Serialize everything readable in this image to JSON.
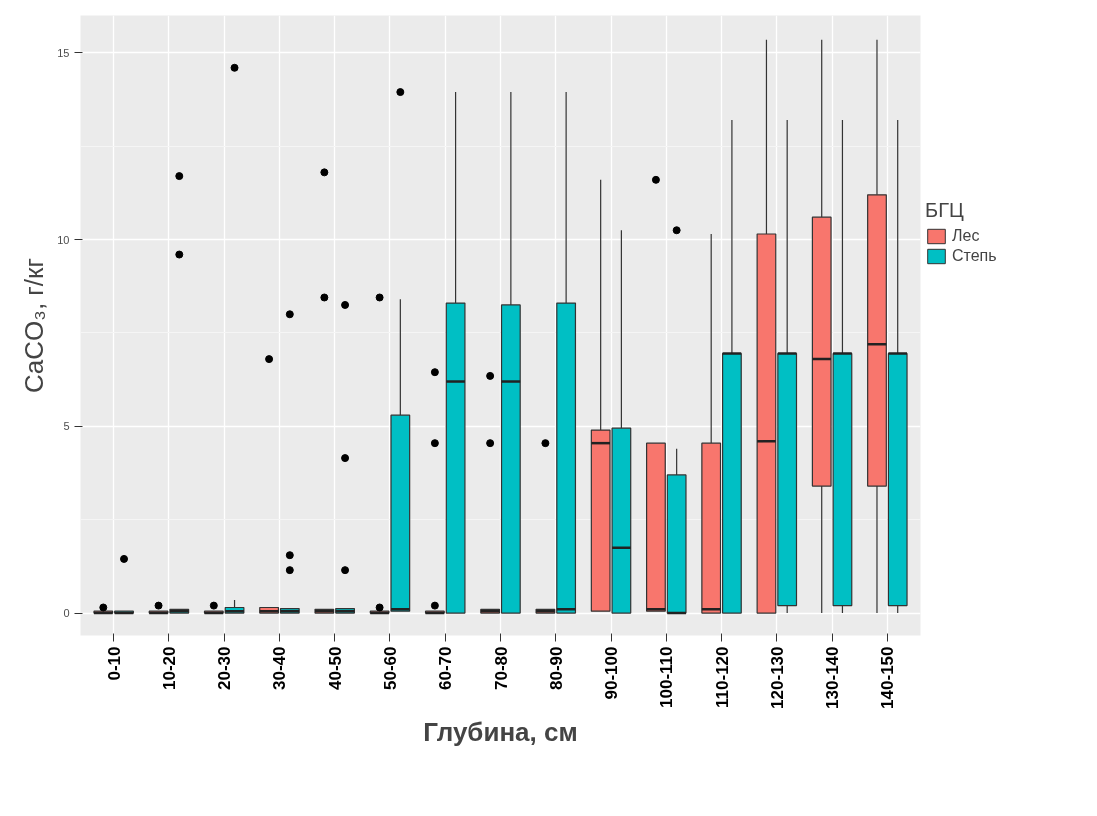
{
  "chart_data": {
    "type": "box",
    "xlabel": "Глубина, см",
    "ylabel": "CaCO₃, г/кг",
    "legend_title": "БГЦ",
    "legend": "right",
    "grid": true,
    "categories": [
      "0-10",
      "10-20",
      "20-30",
      "30-40",
      "40-50",
      "50-60",
      "60-70",
      "70-80",
      "80-90",
      "90-100",
      "100-110",
      "110-120",
      "120-130",
      "130-140",
      "140-150"
    ],
    "ylim": [
      -0.6,
      16.0
    ],
    "yticks": [
      0,
      5,
      10,
      15
    ],
    "series": [
      {
        "name": "Лес",
        "color": "#f8766d",
        "boxes": [
          {
            "low": 0,
            "q1": 0,
            "median": 0,
            "q3": 0.05,
            "high": 0.05,
            "outliers": [
              0.15
            ]
          },
          {
            "low": 0,
            "q1": 0,
            "median": 0,
            "q3": 0.05,
            "high": 0.05,
            "outliers": [
              0.2
            ]
          },
          {
            "low": 0,
            "q1": 0,
            "median": 0,
            "q3": 0.05,
            "high": 0.05,
            "outliers": [
              0.2
            ]
          },
          {
            "low": 0,
            "q1": 0,
            "median": 0.05,
            "q3": 0.15,
            "high": 0.15,
            "outliers": [
              6.8
            ]
          },
          {
            "low": 0,
            "q1": 0,
            "median": 0.05,
            "q3": 0.1,
            "high": 0.1,
            "outliers": [
              11.8,
              8.45
            ]
          },
          {
            "low": 0,
            "q1": 0,
            "median": 0,
            "q3": 0.05,
            "high": 0.05,
            "outliers": [
              8.45,
              0.15
            ]
          },
          {
            "low": 0,
            "q1": 0,
            "median": 0,
            "q3": 0.05,
            "high": 0.05,
            "outliers": [
              6.45,
              4.55,
              0.2
            ]
          },
          {
            "low": 0,
            "q1": 0,
            "median": 0.05,
            "q3": 0.1,
            "high": 0.1,
            "outliers": [
              6.35,
              4.55
            ]
          },
          {
            "low": 0,
            "q1": 0,
            "median": 0.05,
            "q3": 0.1,
            "high": 0.1,
            "outliers": [
              4.55
            ]
          },
          {
            "low": 0.05,
            "q1": 0.05,
            "median": 4.55,
            "q3": 4.9,
            "high": 11.6
          },
          {
            "low": 0.05,
            "q1": 0.05,
            "median": 0.1,
            "q3": 4.55,
            "high": 4.55,
            "outliers": [
              11.6
            ]
          },
          {
            "low": 0,
            "q1": 0,
            "median": 0.1,
            "q3": 4.55,
            "high": 10.15
          },
          {
            "low": 0,
            "q1": 0,
            "median": 4.6,
            "q3": 10.15,
            "high": 15.35
          },
          {
            "low": 0,
            "q1": 3.4,
            "median": 6.8,
            "q3": 10.6,
            "high": 15.35
          },
          {
            "low": 0,
            "q1": 3.4,
            "median": 7.2,
            "q3": 11.2,
            "high": 15.35
          }
        ]
      },
      {
        "name": "Степь",
        "color": "#00bfc4",
        "boxes": [
          {
            "low": 0,
            "q1": 0,
            "median": 0,
            "q3": 0.05,
            "high": 0.05,
            "outliers": [
              1.45
            ]
          },
          {
            "low": 0,
            "q1": 0,
            "median": 0.05,
            "q3": 0.1,
            "high": 0.1,
            "outliers": [
              11.7,
              9.6
            ]
          },
          {
            "low": 0,
            "q1": 0,
            "median": 0.05,
            "q3": 0.15,
            "high": 0.35,
            "outliers": [
              14.6
            ]
          },
          {
            "low": 0,
            "q1": 0,
            "median": 0.05,
            "q3": 0.12,
            "high": 0.12,
            "outliers": [
              8.0,
              1.55,
              1.15
            ]
          },
          {
            "low": 0,
            "q1": 0,
            "median": 0.05,
            "q3": 0.12,
            "high": 0.12,
            "outliers": [
              8.25,
              4.15,
              1.15
            ]
          },
          {
            "low": 0.05,
            "q1": 0.05,
            "median": 0.1,
            "q3": 5.3,
            "high": 8.4,
            "outliers": [
              13.95
            ]
          },
          {
            "low": 0,
            "q1": 0,
            "median": 6.2,
            "q3": 8.3,
            "high": 13.95
          },
          {
            "low": 0,
            "q1": 0,
            "median": 6.2,
            "q3": 8.25,
            "high": 13.95
          },
          {
            "low": 0,
            "q1": 0,
            "median": 0.1,
            "q3": 8.3,
            "high": 13.95
          },
          {
            "low": 0,
            "q1": 0,
            "median": 1.75,
            "q3": 4.95,
            "high": 10.25
          },
          {
            "low": 0,
            "q1": 0,
            "median": 0,
            "q3": 3.7,
            "high": 4.4,
            "outliers": [
              10.25
            ]
          },
          {
            "low": 0,
            "q1": 0,
            "median": 6.95,
            "q3": 6.95,
            "high": 13.2
          },
          {
            "low": 0,
            "q1": 0.2,
            "median": 6.95,
            "q3": 6.95,
            "high": 13.2
          },
          {
            "low": 0,
            "q1": 0.2,
            "median": 6.95,
            "q3": 6.95,
            "high": 13.2
          },
          {
            "low": 0,
            "q1": 0.2,
            "median": 6.95,
            "q3": 6.95,
            "high": 13.2
          }
        ]
      }
    ]
  }
}
